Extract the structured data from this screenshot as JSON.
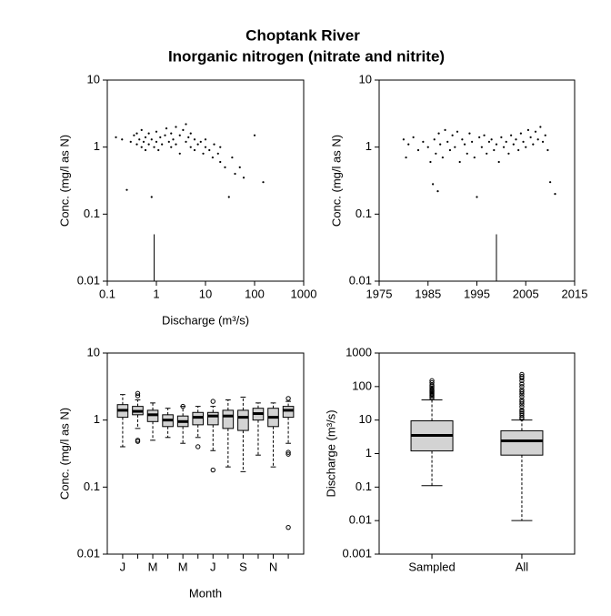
{
  "title": "Choptank River",
  "subtitle": "Inorganic nitrogen (nitrate and nitrite)",
  "chart_data": [
    {
      "type": "scatter",
      "x_label": "Discharge (m³/s)",
      "y_label": "Conc. (mg/l as N)",
      "xlog": true,
      "ylog": true,
      "xlim": [
        0.1,
        1000
      ],
      "ylim": [
        0.01,
        10
      ],
      "xticks": [
        0.1,
        1,
        10,
        100,
        1000
      ],
      "yticks": [
        0.01,
        0.1,
        1,
        10
      ],
      "color": "#000000",
      "x": [
        0.15,
        0.2,
        0.25,
        0.3,
        0.35,
        0.4,
        0.4,
        0.45,
        0.5,
        0.5,
        0.55,
        0.6,
        0.6,
        0.7,
        0.7,
        0.8,
        0.8,
        0.9,
        1,
        1,
        1.1,
        1.2,
        1.3,
        1.5,
        1.6,
        1.8,
        2,
        2,
        2.2,
        2.5,
        2.5,
        3,
        3,
        3.5,
        4,
        4,
        4.5,
        5,
        5,
        6,
        6,
        7,
        8,
        9,
        10,
        10,
        12,
        14,
        15,
        18,
        20,
        20,
        25,
        30,
        35,
        40,
        50,
        60,
        100,
        150
      ],
      "y": [
        1.4,
        1.3,
        0.23,
        1.2,
        1.5,
        1.1,
        1.6,
        1.3,
        1.0,
        1.8,
        1.2,
        0.9,
        1.4,
        1.1,
        1.6,
        0.18,
        1.3,
        1.0,
        1.2,
        1.7,
        0.9,
        1.4,
        1.1,
        1.5,
        1.9,
        1.2,
        1.0,
        1.6,
        1.3,
        2.0,
        1.1,
        1.5,
        0.8,
        1.8,
        1.2,
        2.2,
        1.4,
        1.0,
        1.6,
        1.3,
        0.9,
        1.1,
        1.2,
        0.8,
        1.0,
        1.3,
        0.9,
        0.7,
        1.1,
        0.8,
        0.6,
        1.0,
        0.5,
        0.18,
        0.7,
        0.4,
        0.5,
        0.35,
        1.5,
        0.3
      ],
      "censored": {
        "x": [
          0.9
        ],
        "y": [
          0.05
        ]
      }
    },
    {
      "type": "scatter",
      "y_label": "Conc. (mg/l as N)",
      "xlog": false,
      "ylog": true,
      "xlim": [
        1975,
        2015
      ],
      "ylim": [
        0.01,
        10
      ],
      "xticks": [
        1975,
        1985,
        1995,
        2005,
        2015
      ],
      "yticks": [
        0.01,
        0.1,
        1,
        10
      ],
      "color": "#000000",
      "x": [
        1980,
        1980.5,
        1981,
        1982,
        1983,
        1984,
        1985,
        1985.5,
        1986,
        1986.3,
        1986.6,
        1987,
        1987.2,
        1987.5,
        1988,
        1988.5,
        1989,
        1989.5,
        1990,
        1990.5,
        1991,
        1991.5,
        1992,
        1992.5,
        1993,
        1993.5,
        1994,
        1994.5,
        1995,
        1995.5,
        1996,
        1996.5,
        1997,
        1997.5,
        1998,
        1998.5,
        1999,
        1999.5,
        2000,
        2000.5,
        2001,
        2001.5,
        2002,
        2002.5,
        2003,
        2003.5,
        2004,
        2004.5,
        2005,
        2005.5,
        2006,
        2006.5,
        2007,
        2007.5,
        2008,
        2008.5,
        2009,
        2009.5,
        2010,
        2011
      ],
      "y": [
        1.3,
        0.7,
        1.1,
        1.4,
        0.9,
        1.2,
        1.0,
        0.6,
        0.28,
        1.3,
        0.8,
        0.22,
        1.6,
        1.1,
        0.7,
        1.8,
        1.2,
        0.9,
        1.5,
        1.0,
        1.7,
        0.6,
        1.3,
        1.1,
        0.8,
        1.6,
        1.2,
        0.7,
        0.18,
        1.4,
        1.0,
        1.5,
        0.8,
        1.2,
        1.3,
        0.9,
        1.1,
        0.6,
        1.4,
        1.0,
        1.2,
        0.8,
        1.5,
        1.1,
        1.3,
        0.9,
        1.6,
        1.2,
        1.0,
        1.8,
        1.4,
        1.1,
        1.7,
        1.3,
        2.0,
        1.2,
        1.5,
        0.9,
        0.3,
        0.2
      ],
      "censored": {
        "x": [
          1999
        ],
        "y": [
          0.05
        ]
      }
    },
    {
      "type": "box",
      "x_label": "Month",
      "y_label": "Conc. (mg/l as N)",
      "ylog": true,
      "ylim": [
        0.01,
        10
      ],
      "yticks": [
        0.01,
        0.1,
        1,
        10
      ],
      "box_color": "#d3d3d3",
      "categories": [
        "J",
        null,
        "M",
        null,
        "M",
        null,
        "J",
        null,
        "S",
        null,
        "N",
        null
      ],
      "whislo": [
        0.4,
        0.75,
        0.5,
        0.55,
        0.45,
        0.55,
        0.35,
        0.2,
        0.17,
        0.3,
        0.2,
        0.45
      ],
      "q1": [
        1.1,
        1.2,
        0.95,
        0.8,
        0.8,
        0.85,
        0.85,
        0.75,
        0.7,
        1.0,
        0.8,
        1.1
      ],
      "median": [
        1.4,
        1.35,
        1.2,
        1.0,
        0.95,
        1.1,
        1.15,
        1.15,
        1.1,
        1.25,
        1.1,
        1.4
      ],
      "q3": [
        1.7,
        1.6,
        1.4,
        1.2,
        1.15,
        1.3,
        1.3,
        1.4,
        1.4,
        1.5,
        1.5,
        1.6
      ],
      "whishi": [
        2.4,
        2.0,
        1.8,
        1.5,
        1.6,
        1.6,
        1.6,
        2.0,
        2.2,
        1.8,
        1.8,
        1.9
      ],
      "fliers": [
        [],
        [
          0.5,
          0.48,
          2.3,
          2.5
        ],
        [],
        [],
        [
          1.6
        ],
        [
          0.4
        ],
        [
          1.9,
          0.18
        ],
        [],
        [],
        [],
        [],
        [
          2.1,
          0.33,
          0.31,
          0.025
        ]
      ]
    },
    {
      "type": "box",
      "y_label": "Discharge (m³/s)",
      "ylog": true,
      "ylim": [
        0.001,
        1000
      ],
      "yticks": [
        0.001,
        0.01,
        0.1,
        1,
        10,
        100,
        1000
      ],
      "box_color": "#d3d3d3",
      "categories": [
        "Sampled",
        "All"
      ],
      "whislo": [
        0.11,
        0.01
      ],
      "q1": [
        1.2,
        0.9
      ],
      "median": [
        3.5,
        2.4
      ],
      "q3": [
        9.5,
        4.8
      ],
      "whishi": [
        40,
        10
      ],
      "fliers": [
        [
          45,
          50,
          55,
          60,
          65,
          70,
          75,
          80,
          90,
          100,
          110,
          130,
          150
        ],
        [
          11,
          12,
          14,
          16,
          18,
          20,
          25,
          30,
          35,
          40,
          50,
          60,
          70,
          80,
          100,
          120,
          150,
          180,
          200,
          230
        ]
      ]
    }
  ]
}
